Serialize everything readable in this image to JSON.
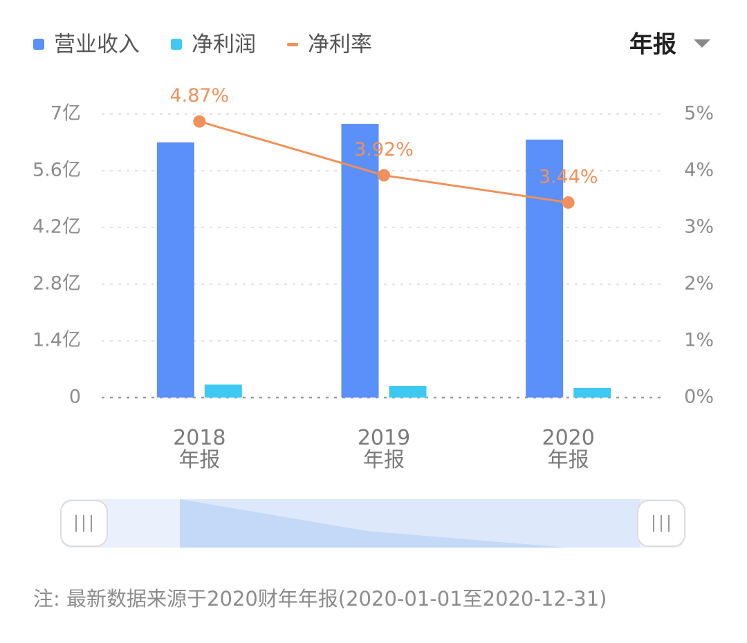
{
  "period_selector": "年报",
  "note": "注: 最新数据来源于2020财年年报(2020-01-01至2020-12-31)",
  "chart_data": {
    "type": "bar-line",
    "categories": [
      [
        "2018",
        "年报"
      ],
      [
        "2019",
        "年报"
      ],
      [
        "2020",
        "年报"
      ]
    ],
    "series": [
      {
        "name": "营业收入",
        "type": "bar",
        "color": "#5b8ff9",
        "values": [
          6.3,
          6.76,
          6.37
        ]
      },
      {
        "name": "净利润",
        "type": "bar",
        "color": "#3ec9f2",
        "values": [
          0.32,
          0.29,
          0.24
        ]
      },
      {
        "name": "净利率",
        "type": "line",
        "axis": "y2",
        "color": "#f0905a",
        "values": [
          4.87,
          3.92,
          3.44
        ],
        "value_labels": [
          "4.87%",
          "3.92%",
          "3.44%"
        ]
      }
    ],
    "ylim": [
      0,
      7
    ],
    "yticks": [
      0,
      {
        "value": 1.4,
        "label": "1.4亿"
      },
      {
        "value": 2.8,
        "label": "2.8亿"
      },
      {
        "value": 4.2,
        "label": "4.2亿"
      },
      {
        "value": 5.6,
        "label": "5.6亿"
      },
      {
        "value": 7,
        "label": "7亿"
      }
    ],
    "y2lim": [
      0,
      5
    ],
    "y2ticks": [
      {
        "value": 0,
        "label": "0%"
      },
      {
        "value": 1,
        "label": "1%"
      },
      {
        "value": 2,
        "label": "2%"
      },
      {
        "value": 3,
        "label": "3%"
      },
      {
        "value": 4,
        "label": "4%"
      },
      {
        "value": 5,
        "label": "5%"
      }
    ],
    "grid": true
  }
}
